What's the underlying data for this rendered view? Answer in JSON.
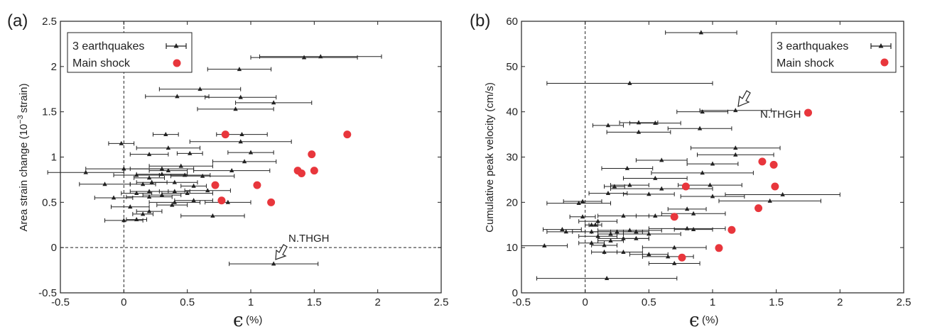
{
  "chart_data": [
    {
      "type": "scatter",
      "panel_label": "(a)",
      "xlabel_symbol": "ϵ",
      "xlabel_unit": "(%)",
      "ylabel_main": "Area strain change (10",
      "ylabel_exp": "−3",
      "ylabel_tail": "strain)",
      "xlim": [
        -0.5,
        2.5
      ],
      "ylim": [
        -0.5,
        2.5
      ],
      "xticks": [
        "-0.5",
        "0",
        "0.5",
        "1",
        "1.5",
        "2",
        "2.5"
      ],
      "yticks": [
        "-0.5",
        "0",
        "0.5",
        "1",
        "1.5",
        "2",
        "2.5"
      ],
      "legend_position": "top-left",
      "annotation": {
        "text": "N.THGH",
        "x": 1.18,
        "y": -0.18
      },
      "series": [
        {
          "name": "3 earthquakes",
          "marker": "triangle",
          "points": [
            {
              "x": 1.18,
              "y": -0.18,
              "xerr": 0.35
            },
            {
              "x": 0.0,
              "y": 0.3,
              "xerr": 0.15
            },
            {
              "x": 0.1,
              "y": 0.31,
              "xerr": 0.08
            },
            {
              "x": 0.7,
              "y": 0.35,
              "xerr": 0.25
            },
            {
              "x": 0.15,
              "y": 0.37,
              "xerr": 0.08
            },
            {
              "x": 0.2,
              "y": 0.4,
              "xerr": 0.1
            },
            {
              "x": 0.38,
              "y": 0.47,
              "xerr": 0.12
            },
            {
              "x": 0.05,
              "y": 0.45,
              "xerr": 0.15
            },
            {
              "x": 0.4,
              "y": 0.5,
              "xerr": 0.2
            },
            {
              "x": 0.55,
              "y": 0.52,
              "xerr": 0.15
            },
            {
              "x": 0.82,
              "y": 0.5,
              "xerr": 0.18
            },
            {
              "x": -0.08,
              "y": 0.55,
              "xerr": 0.15
            },
            {
              "x": 0.2,
              "y": 0.56,
              "xerr": 0.18
            },
            {
              "x": 0.3,
              "y": 0.58,
              "xerr": 0.15
            },
            {
              "x": 0.5,
              "y": 0.6,
              "xerr": 0.2
            },
            {
              "x": 0.1,
              "y": 0.6,
              "xerr": 0.12
            },
            {
              "x": 0.2,
              "y": 0.62,
              "xerr": 0.15
            },
            {
              "x": 0.4,
              "y": 0.62,
              "xerr": 0.12
            },
            {
              "x": 0.66,
              "y": 0.63,
              "xerr": 0.18
            },
            {
              "x": -0.15,
              "y": 0.7,
              "xerr": 0.2
            },
            {
              "x": 0.15,
              "y": 0.7,
              "xerr": 0.1
            },
            {
              "x": 0.22,
              "y": 0.72,
              "xerr": 0.12
            },
            {
              "x": 0.4,
              "y": 0.72,
              "xerr": 0.18
            },
            {
              "x": 0.55,
              "y": 0.68,
              "xerr": 0.1
            },
            {
              "x": 0.2,
              "y": 0.77,
              "xerr": 0.12
            },
            {
              "x": -0.3,
              "y": 0.83,
              "xerr": 0.3
            },
            {
              "x": 0.1,
              "y": 0.8,
              "xerr": 0.18
            },
            {
              "x": 0.3,
              "y": 0.81,
              "xerr": 0.2
            },
            {
              "x": 0.48,
              "y": 0.8,
              "xerr": 0.2
            },
            {
              "x": 0.62,
              "y": 0.79,
              "xerr": 0.25
            },
            {
              "x": 0.85,
              "y": 0.85,
              "xerr": 0.3
            },
            {
              "x": 0.0,
              "y": 0.87,
              "xerr": 0.3
            },
            {
              "x": 0.3,
              "y": 0.87,
              "xerr": 0.25
            },
            {
              "x": 0.45,
              "y": 0.9,
              "xerr": 0.25
            },
            {
              "x": 0.35,
              "y": 0.85,
              "xerr": 0.15
            },
            {
              "x": 0.95,
              "y": 0.95,
              "xerr": 0.25
            },
            {
              "x": 0.2,
              "y": 1.03,
              "xerr": 0.15
            },
            {
              "x": 0.52,
              "y": 1.04,
              "xerr": 0.1
            },
            {
              "x": 0.35,
              "y": 1.1,
              "xerr": 0.25
            },
            {
              "x": 1.0,
              "y": 1.05,
              "xerr": 0.18
            },
            {
              "x": -0.02,
              "y": 1.15,
              "xerr": 0.1
            },
            {
              "x": 0.33,
              "y": 1.25,
              "xerr": 0.1
            },
            {
              "x": 0.93,
              "y": 1.25,
              "xerr": 0.2
            },
            {
              "x": 0.92,
              "y": 1.17,
              "xerr": 0.4
            },
            {
              "x": 0.42,
              "y": 1.67,
              "xerr": 0.25
            },
            {
              "x": 0.6,
              "y": 1.75,
              "xerr": 0.32
            },
            {
              "x": 0.92,
              "y": 1.66,
              "xerr": 0.28
            },
            {
              "x": 1.18,
              "y": 1.6,
              "xerr": 0.3
            },
            {
              "x": 0.88,
              "y": 1.53,
              "xerr": 0.3
            },
            {
              "x": 0.91,
              "y": 1.97,
              "xerr": 0.25
            },
            {
              "x": 1.42,
              "y": 2.1,
              "xerr": 0.42
            },
            {
              "x": 1.55,
              "y": 2.11,
              "xerr": 0.48
            }
          ]
        },
        {
          "name": "Main shock",
          "marker": "circle",
          "color": "#e8363c",
          "points": [
            {
              "x": 0.8,
              "y": 1.25
            },
            {
              "x": 1.76,
              "y": 1.25
            },
            {
              "x": 1.48,
              "y": 1.03
            },
            {
              "x": 1.37,
              "y": 0.85
            },
            {
              "x": 1.4,
              "y": 0.82
            },
            {
              "x": 1.5,
              "y": 0.85
            },
            {
              "x": 0.72,
              "y": 0.69
            },
            {
              "x": 1.05,
              "y": 0.69
            },
            {
              "x": 0.77,
              "y": 0.52
            },
            {
              "x": 1.16,
              "y": 0.5
            }
          ]
        }
      ]
    },
    {
      "type": "scatter",
      "panel_label": "(b)",
      "xlabel_symbol": "ϵ",
      "xlabel_unit": "(%)",
      "ylabel": "Cumulative peak velocity (cm/s)",
      "xlim": [
        -0.5,
        2.5
      ],
      "ylim": [
        0,
        60
      ],
      "xticks": [
        "-0.5",
        "0",
        "0.5",
        "1",
        "1.5",
        "2",
        "2.5"
      ],
      "yticks": [
        "0",
        "10",
        "20",
        "30",
        "40",
        "50",
        "60"
      ],
      "legend_position": "top-right",
      "annotation": {
        "text": "N.THGH",
        "x": 1.18,
        "y": 40.3
      },
      "series": [
        {
          "name": "3 earthquakes",
          "marker": "triangle",
          "points": [
            {
              "x": 0.91,
              "y": 57.5,
              "xerr": 0.28
            },
            {
              "x": 0.35,
              "y": 46.3,
              "xerr": 0.65
            },
            {
              "x": 0.92,
              "y": 40.0,
              "xerr": 0.2
            },
            {
              "x": 1.18,
              "y": 40.3,
              "xerr": 0.28
            },
            {
              "x": 0.42,
              "y": 37.6,
              "xerr": 0.15
            },
            {
              "x": 0.55,
              "y": 37.5,
              "xerr": 0.2
            },
            {
              "x": 0.18,
              "y": 37.0,
              "xerr": 0.12
            },
            {
              "x": 0.9,
              "y": 36.3,
              "xerr": 0.25
            },
            {
              "x": 0.42,
              "y": 35.5,
              "xerr": 0.25
            },
            {
              "x": 1.18,
              "y": 32.0,
              "xerr": 0.35
            },
            {
              "x": 1.18,
              "y": 30.5,
              "xerr": 0.3
            },
            {
              "x": 0.6,
              "y": 29.3,
              "xerr": 0.2
            },
            {
              "x": 1.0,
              "y": 28.5,
              "xerr": 0.2
            },
            {
              "x": 0.33,
              "y": 27.5,
              "xerr": 0.2
            },
            {
              "x": 0.92,
              "y": 26.5,
              "xerr": 0.4
            },
            {
              "x": 0.55,
              "y": 25.3,
              "xerr": 0.25
            },
            {
              "x": 0.23,
              "y": 23.5,
              "xerr": 0.08
            },
            {
              "x": 0.35,
              "y": 23.8,
              "xerr": 0.15
            },
            {
              "x": 0.6,
              "y": 23.0,
              "xerr": 0.4
            },
            {
              "x": 0.98,
              "y": 23.8,
              "xerr": 0.25
            },
            {
              "x": 0.18,
              "y": 22.0,
              "xerr": 0.15
            },
            {
              "x": 0.5,
              "y": 21.8,
              "xerr": 0.2
            },
            {
              "x": 1.55,
              "y": 21.7,
              "xerr": 0.45
            },
            {
              "x": 1.0,
              "y": 21.3,
              "xerr": 0.25
            },
            {
              "x": 1.45,
              "y": 20.3,
              "xerr": 0.4
            },
            {
              "x": -0.02,
              "y": 20.2,
              "xerr": 0.15
            },
            {
              "x": -0.05,
              "y": 19.8,
              "xerr": 0.25
            },
            {
              "x": 0.8,
              "y": 18.5,
              "xerr": 0.15
            },
            {
              "x": 0.85,
              "y": 17.5,
              "xerr": 0.25
            },
            {
              "x": 0.55,
              "y": 17.0,
              "xerr": 0.15
            },
            {
              "x": 0.3,
              "y": 17.0,
              "xerr": 0.2
            },
            {
              "x": -0.02,
              "y": 16.8,
              "xerr": 0.1
            },
            {
              "x": 0.1,
              "y": 15.8,
              "xerr": 0.15
            },
            {
              "x": 0.05,
              "y": 15.0,
              "xerr": 0.05
            },
            {
              "x": 0.08,
              "y": 15.0,
              "xerr": 0.05
            },
            {
              "x": -0.15,
              "y": 13.5,
              "xerr": 0.15
            },
            {
              "x": -0.18,
              "y": 14.0,
              "xerr": 0.15
            },
            {
              "x": 0.05,
              "y": 13.5,
              "xerr": 0.15
            },
            {
              "x": 0.25,
              "y": 13.5,
              "xerr": 0.2
            },
            {
              "x": 0.35,
              "y": 13.8,
              "xerr": 0.25
            },
            {
              "x": 0.5,
              "y": 13.0,
              "xerr": 0.25
            },
            {
              "x": 0.2,
              "y": 13.0,
              "xerr": 0.1
            },
            {
              "x": 0.4,
              "y": 13.5,
              "xerr": 0.1
            },
            {
              "x": 0.8,
              "y": 14.2,
              "xerr": 0.3
            },
            {
              "x": 0.85,
              "y": 14.0,
              "xerr": 0.15
            },
            {
              "x": 0.1,
              "y": 12.5,
              "xerr": 0.15
            },
            {
              "x": 0.3,
              "y": 12.0,
              "xerr": 0.2
            },
            {
              "x": 0.2,
              "y": 11.5,
              "xerr": 0.1
            },
            {
              "x": 0.4,
              "y": 12.0,
              "xerr": 0.1
            },
            {
              "x": 0.05,
              "y": 11.0,
              "xerr": 0.1
            },
            {
              "x": 0.15,
              "y": 10.5,
              "xerr": 0.1
            },
            {
              "x": -0.32,
              "y": 10.4,
              "xerr": 0.18
            },
            {
              "x": 0.7,
              "y": 10.0,
              "xerr": 0.25
            },
            {
              "x": 0.15,
              "y": 9.0,
              "xerr": 0.1
            },
            {
              "x": 0.3,
              "y": 9.0,
              "xerr": 0.15
            },
            {
              "x": 0.5,
              "y": 8.5,
              "xerr": 0.15
            },
            {
              "x": 0.65,
              "y": 8.0,
              "xerr": 0.2
            },
            {
              "x": 0.7,
              "y": 6.5,
              "xerr": 0.2
            },
            {
              "x": 0.17,
              "y": 3.2,
              "xerr": 0.55
            }
          ]
        },
        {
          "name": "Main shock",
          "marker": "circle",
          "color": "#e8363c",
          "points": [
            {
              "x": 1.75,
              "y": 39.8
            },
            {
              "x": 1.39,
              "y": 29.0
            },
            {
              "x": 1.48,
              "y": 28.3
            },
            {
              "x": 0.79,
              "y": 23.5
            },
            {
              "x": 1.49,
              "y": 23.5
            },
            {
              "x": 1.36,
              "y": 18.7
            },
            {
              "x": 0.7,
              "y": 16.8
            },
            {
              "x": 1.15,
              "y": 13.9
            },
            {
              "x": 1.05,
              "y": 9.9
            },
            {
              "x": 0.76,
              "y": 7.8
            }
          ]
        }
      ]
    }
  ]
}
